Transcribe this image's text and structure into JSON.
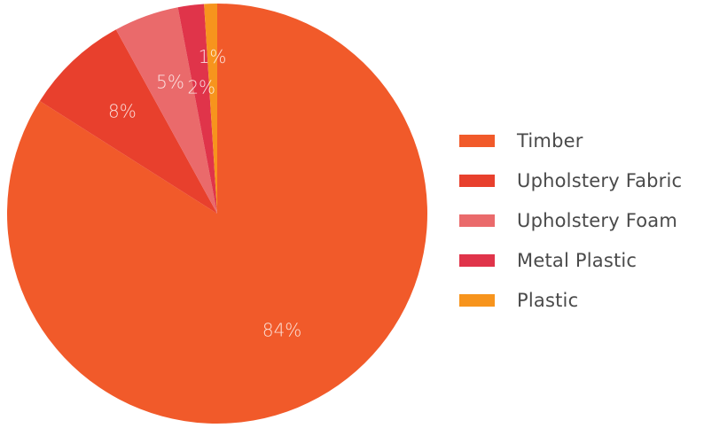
{
  "chart_data": {
    "type": "pie",
    "title": "",
    "categories": [
      "Timber",
      "Upholstery Fabric",
      "Upholstery Foam",
      "Metal Plastic",
      "Plastic"
    ],
    "values": [
      84,
      8,
      5,
      2,
      1
    ],
    "value_labels": [
      "84%",
      "8%",
      "5%",
      "2%",
      "1%"
    ],
    "colors": [
      "#f15a2a",
      "#e8402d",
      "#ea6a6b",
      "#e0344a",
      "#f7941d"
    ],
    "start": "12 o'clock",
    "direction": "clockwise",
    "legend_position": "right"
  }
}
